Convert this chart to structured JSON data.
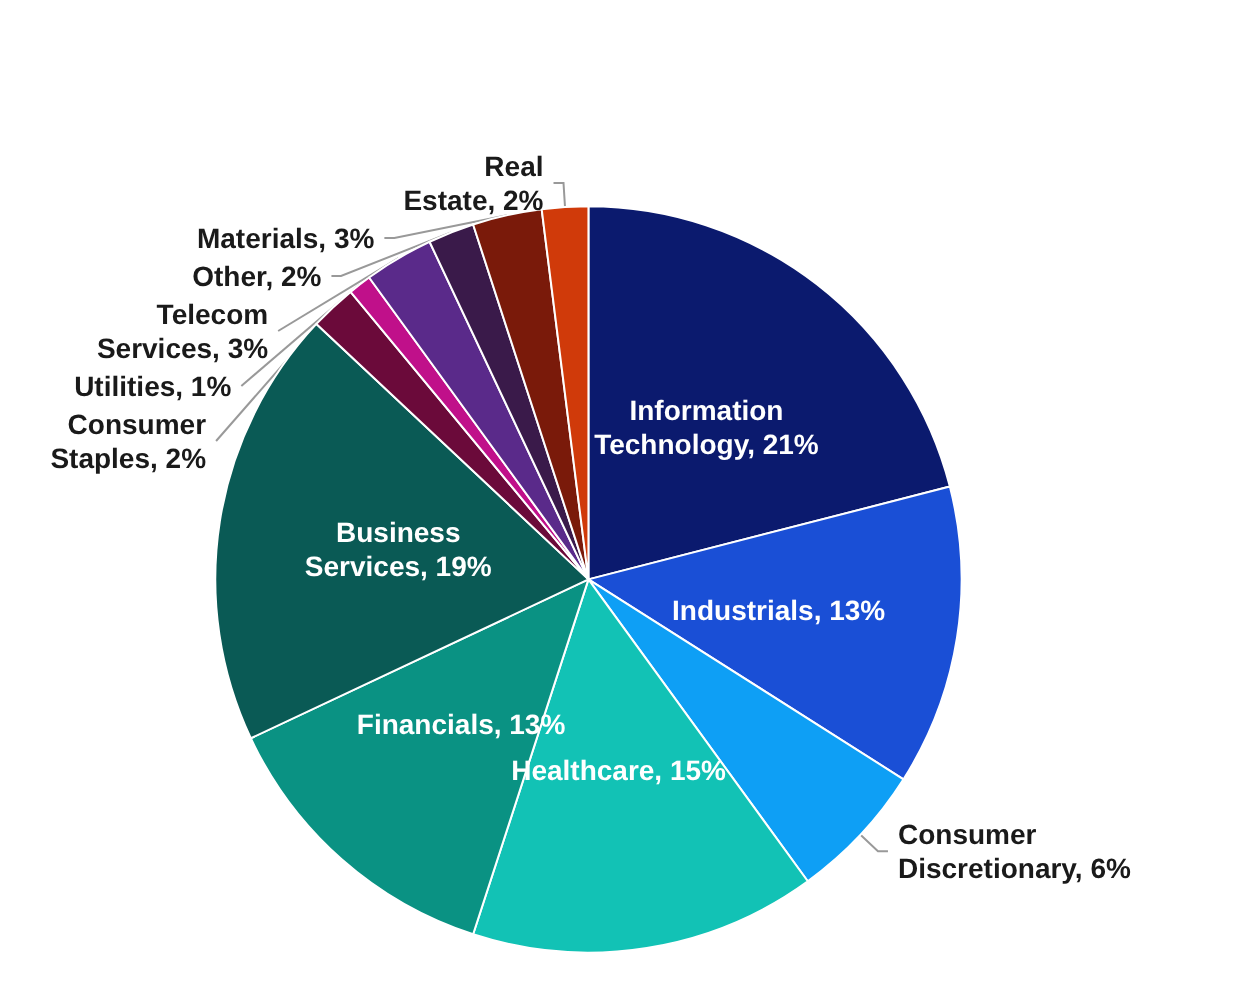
{
  "chart_data": {
    "type": "pie",
    "categories": [
      "Information Technology",
      "Industrials",
      "Consumer Discretionary",
      "Healthcare",
      "Financials",
      "Business Services",
      "Consumer Staples",
      "Utilities",
      "Telecom Services",
      "Other",
      "Materials",
      "Real Estate"
    ],
    "values": [
      21,
      13,
      6,
      15,
      13,
      19,
      2,
      1,
      3,
      2,
      3,
      2
    ],
    "colors": [
      "#0b1a6e",
      "#1a4fd6",
      "#0e9ff5",
      "#12c2b5",
      "#0a9283",
      "#0a5a55",
      "#6b0a3a",
      "#c0108a",
      "#5a2a8a",
      "#3a1a4a",
      "#7a1a0a",
      "#d03a0a"
    ],
    "value_labels": [
      "21%",
      "13%",
      "6%",
      "15%",
      "13%",
      "19%",
      "2%",
      "1%",
      "3%",
      "2%",
      "3%",
      "2%"
    ],
    "legend": false
  }
}
